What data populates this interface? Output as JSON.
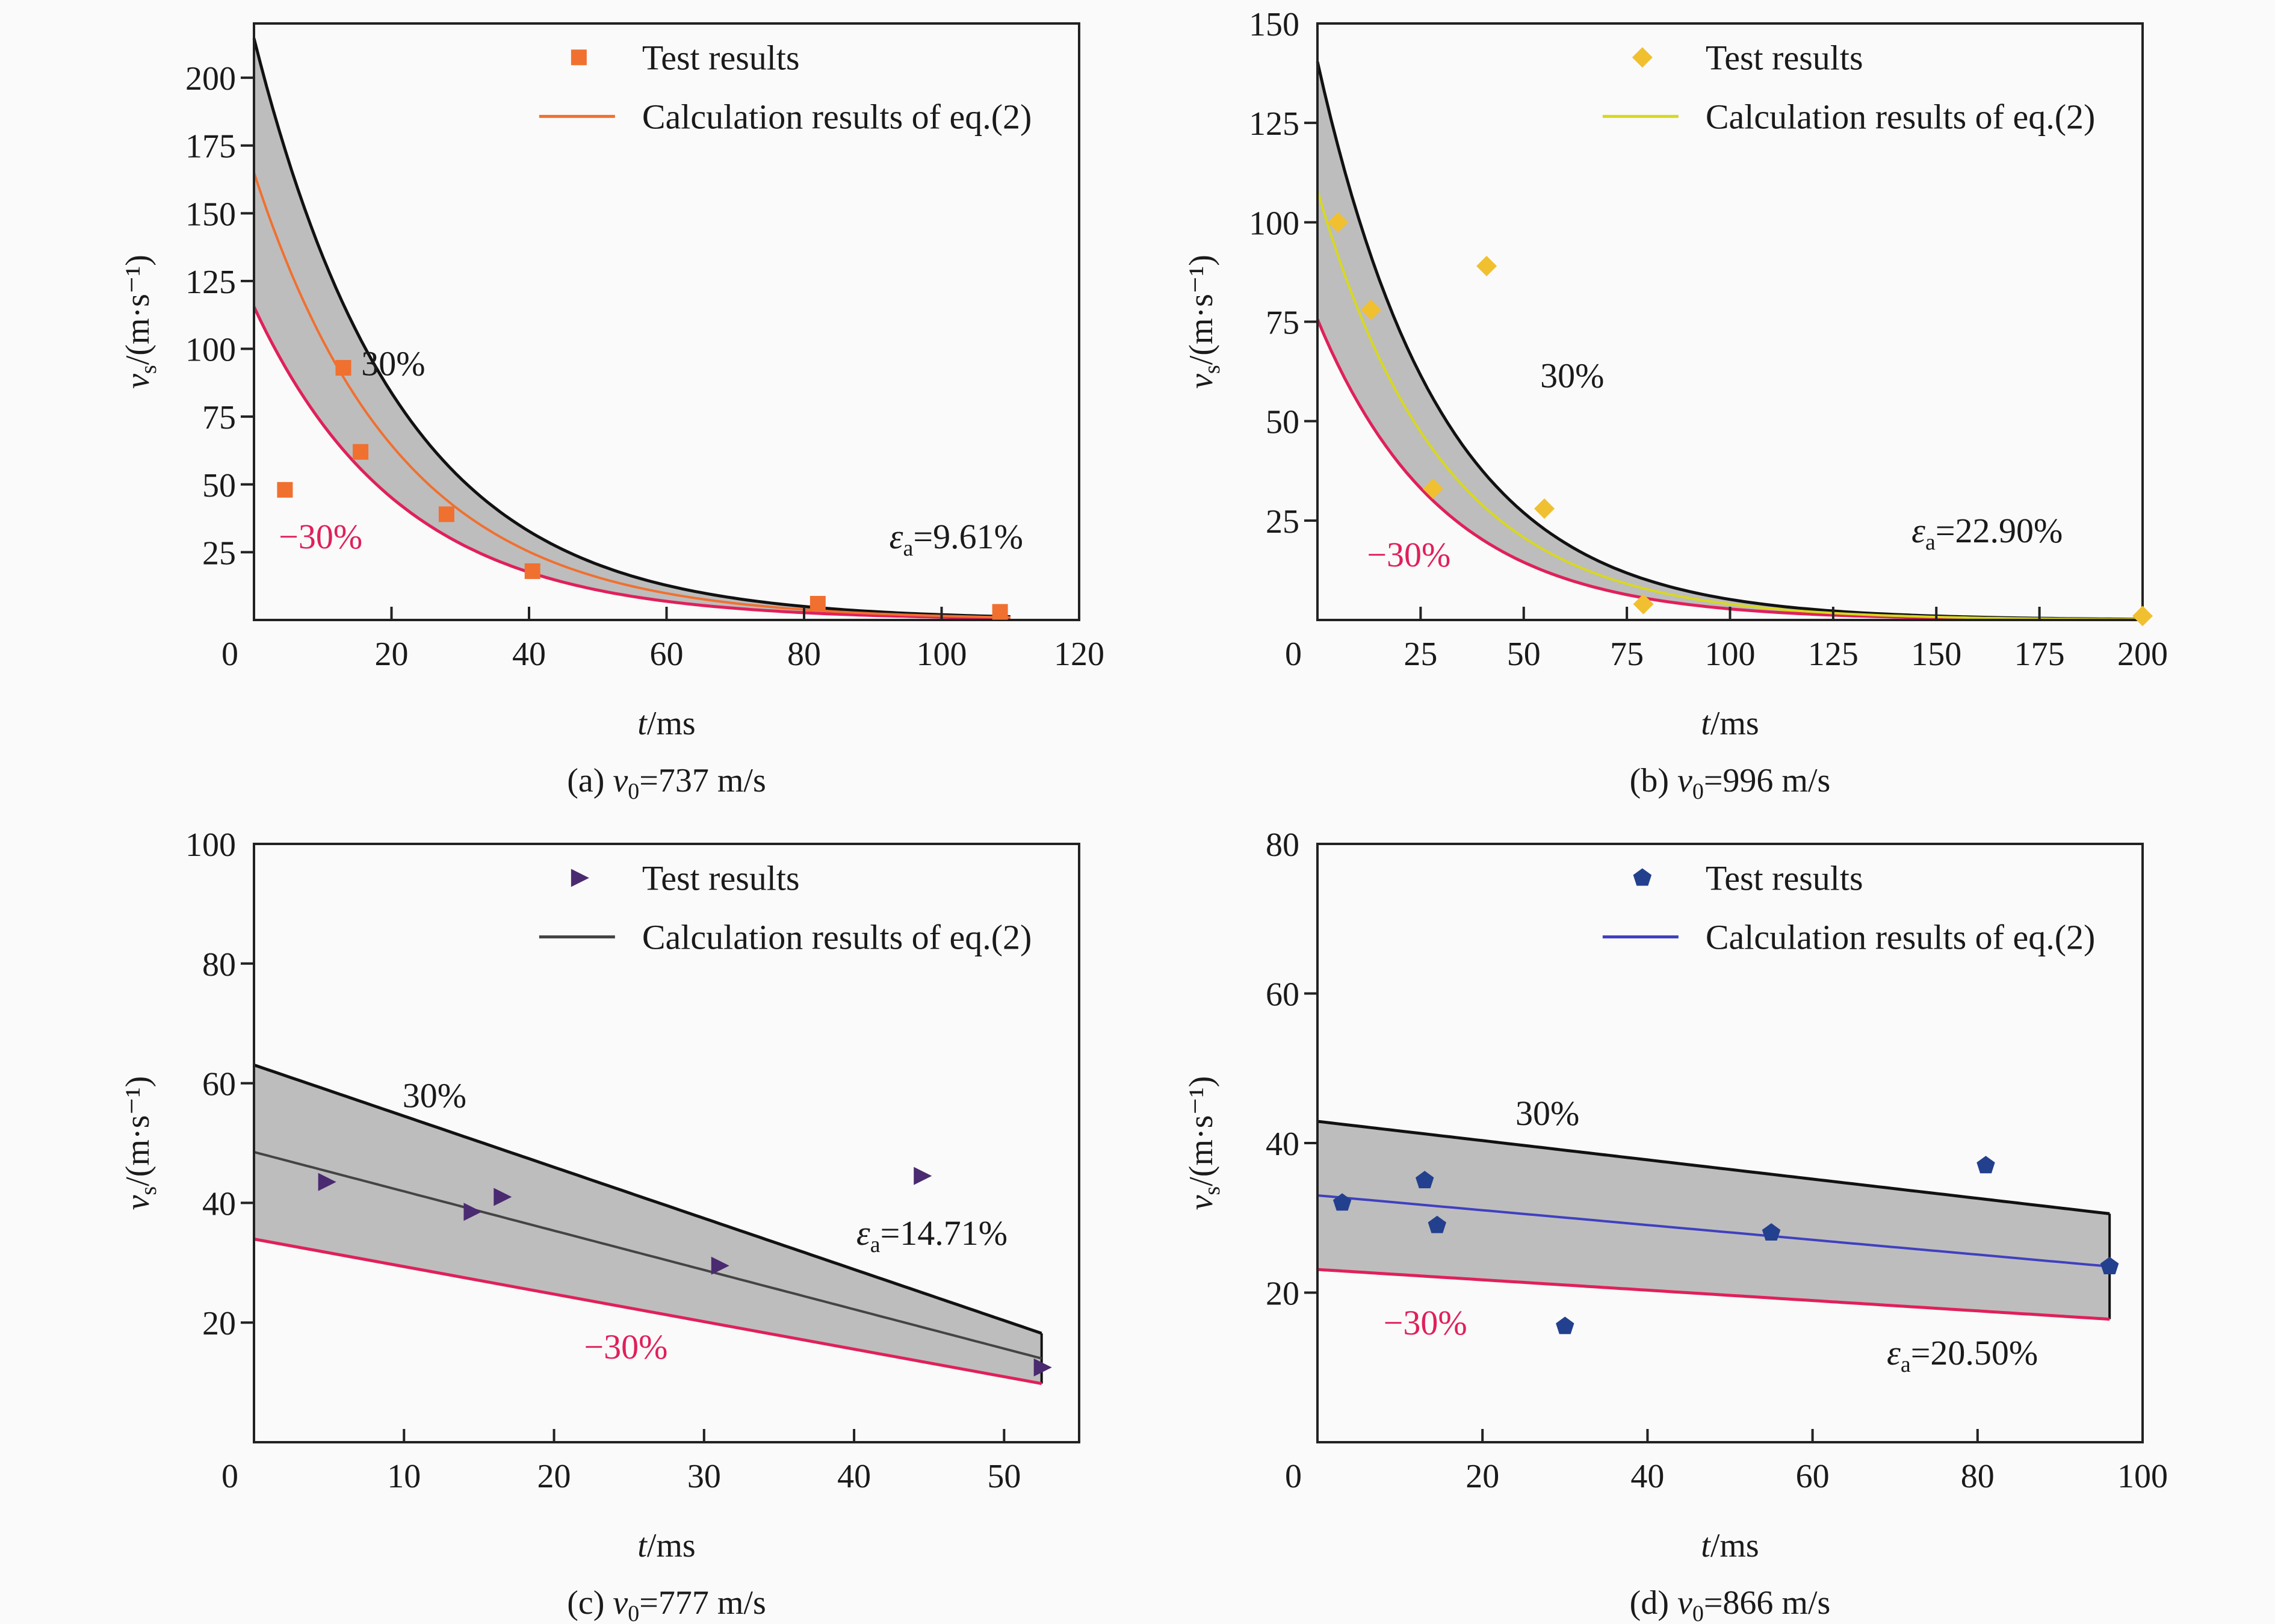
{
  "chart_data": [
    {
      "id": "a",
      "type": "scatter",
      "caption_prefix": "(a) ",
      "caption_var": "v",
      "caption_sub": "0",
      "caption_suffix": "=737 m/s",
      "xlabel_var": "t",
      "xlabel_unit": "/ms",
      "ylabel": "v_s/(m·s⁻¹)",
      "xlim": [
        0,
        120
      ],
      "ylim": [
        0,
        220
      ],
      "xticks": [
        0,
        20,
        40,
        60,
        80,
        100,
        120
      ],
      "yticks": [
        25,
        50,
        75,
        100,
        125,
        150,
        175,
        200
      ],
      "marker": "square",
      "color": "#f07030",
      "model": {
        "kind": "exp",
        "v0": 165,
        "k": 0.047,
        "t_end": 110
      },
      "test_points": [
        [
          4.5,
          48
        ],
        [
          13,
          93
        ],
        [
          15.5,
          62
        ],
        [
          28,
          39
        ],
        [
          40.5,
          18
        ],
        [
          82,
          6
        ],
        [
          108.5,
          3
        ]
      ],
      "band_upper_label": "30%",
      "band_lower_label": "−30%",
      "error_label_sym": "ε",
      "error_label_sub": "a",
      "error_label_value": "=9.61%",
      "legend": {
        "marker_label": "Test results",
        "line_label": "Calculation results of eq.(2)"
      }
    },
    {
      "id": "b",
      "type": "scatter",
      "caption_prefix": "(b) ",
      "caption_var": "v",
      "caption_sub": "0",
      "caption_suffix": "=996 m/s",
      "xlabel_var": "t",
      "xlabel_unit": "/ms",
      "ylabel": "v_s/(m·s⁻¹)",
      "xlim": [
        0,
        200
      ],
      "ylim": [
        0,
        150
      ],
      "xticks": [
        0,
        25,
        50,
        75,
        100,
        125,
        150,
        175,
        200
      ],
      "yticks": [
        25,
        50,
        75,
        100,
        125,
        150
      ],
      "marker": "diamond",
      "color": "#f0c030",
      "linecolor": "#d8d820",
      "model": {
        "kind": "exp",
        "v0": 108,
        "k": 0.033,
        "t_end": 200
      },
      "test_points": [
        [
          5,
          100
        ],
        [
          13,
          78
        ],
        [
          28,
          33
        ],
        [
          41,
          89
        ],
        [
          55,
          28
        ],
        [
          79,
          4
        ],
        [
          200,
          1
        ]
      ],
      "band_upper_label": "30%",
      "band_lower_label": "−30%",
      "error_label_sym": "ε",
      "error_label_sub": "a",
      "error_label_value": "=22.90%",
      "legend": {
        "marker_label": "Test results",
        "line_label": "Calculation results of eq.(2)"
      }
    },
    {
      "id": "c",
      "type": "scatter",
      "caption_prefix": "(c) ",
      "caption_var": "v",
      "caption_sub": "0",
      "caption_suffix": "=777 m/s",
      "xlabel_var": "t",
      "xlabel_unit": "/ms",
      "ylabel": "v_s/(m·s⁻¹)",
      "xlim": [
        0,
        55
      ],
      "ylim": [
        0,
        100
      ],
      "xticks": [
        0,
        10,
        20,
        30,
        40,
        50
      ],
      "yticks": [
        20,
        40,
        60,
        80,
        100
      ],
      "marker": "triangle-right",
      "color": "#4a2a70",
      "linecolor": "#444444",
      "model": {
        "kind": "linear",
        "v0": 48.5,
        "v_end": 14,
        "t_end": 52.5
      },
      "test_points": [
        [
          4.8,
          43.5
        ],
        [
          14.5,
          38.5
        ],
        [
          16.5,
          41
        ],
        [
          31,
          29.5
        ],
        [
          44.5,
          44.5
        ],
        [
          52.5,
          12.5
        ]
      ],
      "band_upper_label": "30%",
      "band_lower_label": "−30%",
      "error_label_sym": "ε",
      "error_label_sub": "a",
      "error_label_value": "=14.71%",
      "legend": {
        "marker_label": "Test results",
        "line_label": "Calculation results of eq.(2)"
      }
    },
    {
      "id": "d",
      "type": "scatter",
      "caption_prefix": "(d) ",
      "caption_var": "v",
      "caption_sub": "0",
      "caption_suffix": "=866 m/s",
      "xlabel_var": "t",
      "xlabel_unit": "/ms",
      "ylabel": "v_s/(m·s⁻¹)",
      "xlim": [
        0,
        100
      ],
      "ylim": [
        0,
        80
      ],
      "xticks": [
        0,
        20,
        40,
        60,
        80,
        100
      ],
      "yticks": [
        20,
        40,
        60,
        80
      ],
      "marker": "pentagon",
      "color": "#23408e",
      "linecolor": "#4040c0",
      "model": {
        "kind": "linear",
        "v0": 33,
        "v_end": 23.5,
        "t_end": 96
      },
      "test_points": [
        [
          3,
          32
        ],
        [
          13,
          35
        ],
        [
          14.5,
          29
        ],
        [
          30,
          15.5
        ],
        [
          55,
          28
        ],
        [
          81,
          37
        ],
        [
          96,
          23.5
        ]
      ],
      "band_upper_label": "30%",
      "band_lower_label": "−30%",
      "error_label_sym": "ε",
      "error_label_sub": "a",
      "error_label_value": "=20.50%",
      "legend": {
        "marker_label": "Test results",
        "line_label": "Calculation results of eq.(2)"
      }
    }
  ],
  "colors": {
    "band_fill": "#bdbdbd",
    "upper_line": "#111111",
    "lower_line": "#e0205a",
    "lower_label": "#e0205a"
  }
}
